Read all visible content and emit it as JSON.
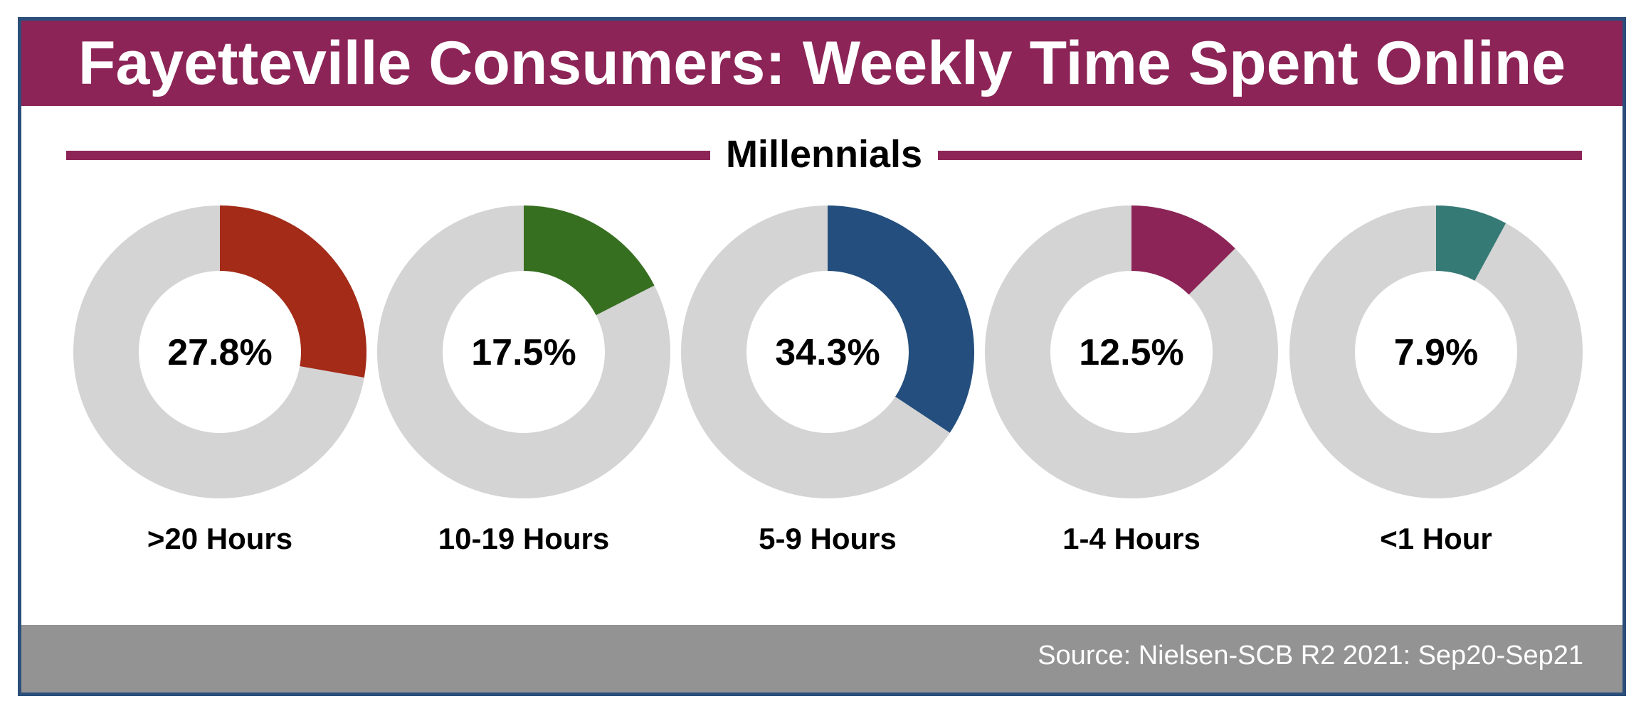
{
  "title": "Fayetteville Consumers: Weekly Time Spent Online",
  "subtitle": "Millennials",
  "source": "Source: Nielsen-SCB R2 2021:  Sep20-Sep21",
  "colors": {
    "title_bar": "#8c2457",
    "frame_border": "#2b4f7a",
    "ring_background": "#d4d4d4",
    "footer": "#939393"
  },
  "chart_data": {
    "type": "pie",
    "title": "Fayetteville Consumers: Weekly Time Spent Online",
    "subtitle": "Millennials",
    "categories": [
      ">20 Hours",
      "10-19 Hours",
      "5-9 Hours",
      "1-4 Hours",
      "<1 Hour"
    ],
    "values": [
      27.8,
      17.5,
      34.3,
      12.5,
      7.9
    ],
    "value_labels": [
      "27.8%",
      "17.5%",
      "34.3%",
      "12.5%",
      "7.9%"
    ],
    "colors": [
      "#a32b18",
      "#376f20",
      "#234e7e",
      "#8c2457",
      "#367a76"
    ],
    "max": 100
  }
}
